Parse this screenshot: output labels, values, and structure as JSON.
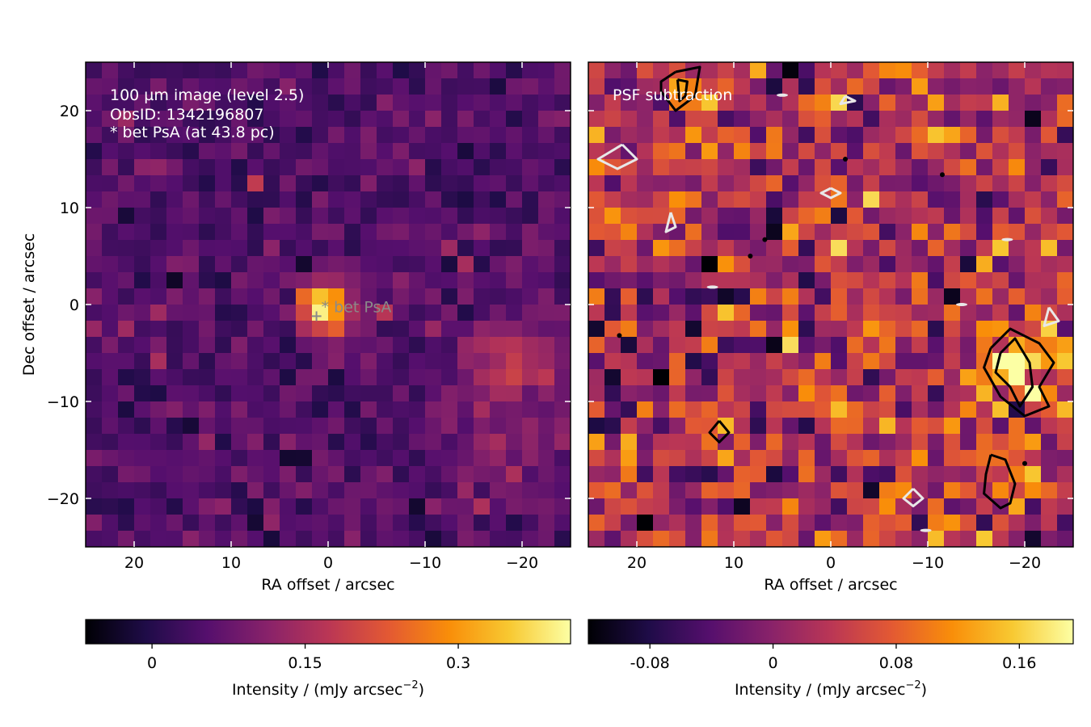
{
  "chart_data": [
    {
      "type": "heatmap",
      "panel": "left",
      "annotations": [
        "100 µm image (level 2.5)",
        "ObsID: 1342196807",
        "* bet PsA (at 43.8 pc)"
      ],
      "star_label": "* bet PsA",
      "star_marker": {
        "x": 1.2,
        "y": -1.2
      },
      "star_label_pos": {
        "x": 0.7,
        "y": -0.2
      },
      "xlabel": "RA offset / arcsec",
      "ylabel": "Dec offset / arcsec",
      "xlim": [
        25,
        -25
      ],
      "ylim": [
        -25,
        25
      ],
      "xticks": [
        20,
        10,
        0,
        -10,
        -20
      ],
      "xtick_labels": [
        "20",
        "10",
        "0",
        "−10",
        "−20"
      ],
      "yticks": [
        20,
        10,
        0,
        -10,
        -20
      ],
      "ytick_labels": [
        "20",
        "10",
        "0",
        "−10",
        "−20"
      ],
      "pixel_size_arcsec": 1.667,
      "grid_size": 30,
      "features": [
        {
          "kind": "peak",
          "x": 0.4,
          "y": -0.4,
          "sigma": 1.9,
          "amp": 0.36
        },
        {
          "kind": "blob",
          "x": -18.5,
          "y": -6.5,
          "sigma": 3.2,
          "amp": 0.15
        },
        {
          "kind": "blob",
          "x": -18.0,
          "y": -17.0,
          "sigma": 3.5,
          "amp": 0.05
        }
      ],
      "colorbar": {
        "colormap": "inferno",
        "range": [
          -0.065,
          0.41
        ],
        "ticks": [
          0,
          0.15,
          0.3
        ],
        "tick_labels": [
          "0",
          "0.15",
          "0.3"
        ],
        "label": "Intensity / (mJy arcsec$^{-2}$)",
        "label_main": "Intensity / (mJy arcsec",
        "label_exp": "−2",
        "label_close": ")"
      }
    },
    {
      "type": "heatmap",
      "panel": "right",
      "annotations": [
        "PSF subtraction"
      ],
      "xlabel": "RA offset / arcsec",
      "xlim": [
        25,
        -25
      ],
      "ylim": [
        -25,
        25
      ],
      "xticks": [
        20,
        10,
        0,
        -10,
        -20
      ],
      "xtick_labels": [
        "20",
        "10",
        "0",
        "−10",
        "−20"
      ],
      "pixel_size_arcsec": 1.667,
      "grid_size": 30,
      "features": [
        {
          "kind": "blob",
          "x": -19.0,
          "y": -6.5,
          "sigma": 2.3,
          "amp": 0.16
        },
        {
          "kind": "blob",
          "x": -17.5,
          "y": -17.5,
          "sigma": 1.8,
          "amp": 0.1
        },
        {
          "kind": "blob",
          "x": 15.0,
          "y": 22.5,
          "sigma": 1.5,
          "amp": 0.11
        },
        {
          "kind": "blob",
          "x": 11.5,
          "y": -13.0,
          "sigma": 1.0,
          "amp": 0.1
        }
      ],
      "contours_black": [
        [
          [
            -16.5,
            -4.5
          ],
          [
            -18.5,
            -2.5
          ],
          [
            -21.5,
            -4.0
          ],
          [
            -23.0,
            -6.0
          ],
          [
            -21.5,
            -8.5
          ],
          [
            -22.5,
            -10.5
          ],
          [
            -20.0,
            -11.5
          ],
          [
            -17.5,
            -9.5
          ],
          [
            -15.8,
            -6.5
          ],
          [
            -16.5,
            -4.5
          ]
        ],
        [
          [
            -17.5,
            -5.0
          ],
          [
            -19.0,
            -3.5
          ],
          [
            -20.5,
            -6.0
          ],
          [
            -20.8,
            -8.5
          ],
          [
            -19.5,
            -10.5
          ],
          [
            -18.5,
            -8.5
          ],
          [
            -17.0,
            -7.0
          ],
          [
            -17.5,
            -5.0
          ]
        ],
        [
          [
            16.0,
            24.0
          ],
          [
            13.5,
            24.5
          ],
          [
            14.0,
            21.5
          ],
          [
            16.0,
            20.0
          ],
          [
            17.5,
            22.0
          ],
          [
            17.5,
            23.0
          ],
          [
            16.0,
            24.0
          ]
        ],
        [
          [
            15.8,
            23.2
          ],
          [
            14.8,
            23.0
          ],
          [
            15.0,
            21.5
          ],
          [
            15.6,
            21.0
          ],
          [
            15.8,
            23.2
          ]
        ],
        [
          [
            -16.5,
            -15.5
          ],
          [
            -18.0,
            -16.0
          ],
          [
            -19.0,
            -18.5
          ],
          [
            -18.5,
            -20.5
          ],
          [
            -17.5,
            -21.0
          ],
          [
            -15.8,
            -19.5
          ],
          [
            -16.0,
            -17.5
          ],
          [
            -16.5,
            -15.5
          ]
        ],
        [
          [
            11.5,
            -12.0
          ],
          [
            10.5,
            -13.2
          ],
          [
            11.5,
            -14.2
          ],
          [
            12.5,
            -13.2
          ],
          [
            11.5,
            -12.0
          ]
        ]
      ],
      "contours_white": [
        [
          [
            21.5,
            16.5
          ],
          [
            24.0,
            15.0
          ],
          [
            22.0,
            14.0
          ],
          [
            20.0,
            15.0
          ],
          [
            21.5,
            16.5
          ]
        ],
        [
          [
            16.5,
            9.5
          ],
          [
            16.0,
            8.0
          ],
          [
            17.0,
            7.5
          ],
          [
            16.5,
            9.5
          ]
        ],
        [
          [
            -1.5,
            21.5
          ],
          [
            -2.5,
            21.0
          ],
          [
            -1.0,
            20.7
          ],
          [
            -1.5,
            21.5
          ]
        ],
        [
          [
            0.0,
            12.0
          ],
          [
            -1.0,
            11.5
          ],
          [
            0.0,
            11.0
          ],
          [
            1.0,
            11.5
          ],
          [
            0.0,
            12.0
          ]
        ],
        [
          [
            -22.5,
            -0.3
          ],
          [
            -23.5,
            -1.7
          ],
          [
            -22.0,
            -2.2
          ],
          [
            -22.5,
            -0.3
          ]
        ],
        [
          [
            -8.5,
            -19.0
          ],
          [
            -9.5,
            -20.0
          ],
          [
            -8.5,
            -20.8
          ],
          [
            -7.5,
            -20.0
          ],
          [
            -8.5,
            -19.0
          ]
        ]
      ],
      "contour_dots_black": [
        [
          21.8,
          -3.2
        ],
        [
          -1.5,
          15.0
        ],
        [
          6.8,
          6.7
        ],
        [
          8.3,
          5.0
        ],
        [
          -20.0,
          -16.4
        ],
        [
          -11.5,
          13.4
        ]
      ],
      "contour_dots_white": [
        [
          -13.5,
          0.0
        ],
        [
          -18.2,
          6.7
        ],
        [
          12.2,
          1.8
        ],
        [
          5.0,
          21.6
        ],
        [
          -9.8,
          -23.3
        ]
      ],
      "colorbar": {
        "colormap": "inferno",
        "range": [
          -0.12,
          0.195
        ],
        "ticks": [
          -0.08,
          0,
          0.08,
          0.16
        ],
        "tick_labels": [
          "-0.08",
          "0",
          "0.08",
          "0.16"
        ],
        "label": "Intensity / (mJy arcsec$^{-2}$)",
        "label_main": "Intensity / (mJy arcsec",
        "label_exp": "−2",
        "label_close": ")"
      }
    }
  ]
}
